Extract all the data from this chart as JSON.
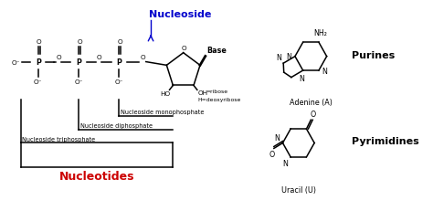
{
  "bg_color": "#ffffff",
  "nucleoside_label": "Nucleoside",
  "nucleoside_color": "#0000cc",
  "base_label": "Base",
  "nucleotides_label": "Nucleotides",
  "nucleotides_color": "#cc0000",
  "mono_label": "Nucleoside monophosphate",
  "di_label": "Nucleoside diphosphate",
  "tri_label": "Nucleoside triphosphate",
  "ribose_label": "OH=ribose",
  "deoxyribose_label": "H=deoxyribose",
  "purines_label": "Purines",
  "adenine_label": "Adenine (A)",
  "pyrimidines_label": "Pyrimidines",
  "uracil_label": "Uracil (U)",
  "nh2_label": "NH₂",
  "black": "#000000"
}
